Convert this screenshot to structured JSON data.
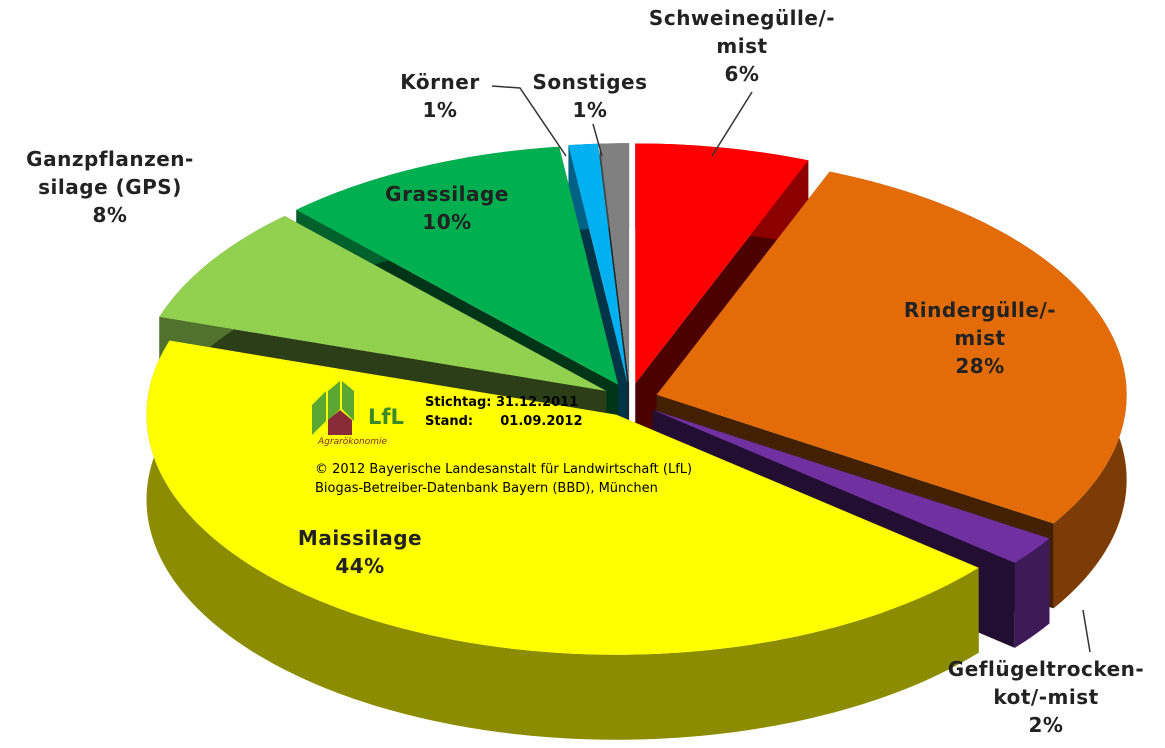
{
  "chart_data": {
    "type": "pie",
    "categories": [
      "Schweinegülle/-\nmist",
      "Rindergülle/-mist",
      "Geflügeltrocken-\nkot/-mist",
      "Maissilage",
      "Ganzpflanzen-\nsilage (GPS)",
      "Grassilage",
      "Körner",
      "Sonstiges"
    ],
    "values": [
      6,
      28,
      2,
      44,
      8,
      10,
      1,
      1
    ],
    "value_labels": [
      "6%",
      "28%",
      "2%",
      "44%",
      "8%",
      "10%",
      "1%",
      "1%"
    ],
    "colors": [
      "#ff0000",
      "#e36c09",
      "#7030a0",
      "#ffff00",
      "#92d050",
      "#00b050",
      "#00b0f0",
      "#808080"
    ],
    "logo": {
      "text": "LfL",
      "subtitle": "Agrarökonomie"
    },
    "annotations": [
      "Stichtag: 31.12.2011",
      "Stand:      01.09.2012",
      "© 2012 Bayerische Landesanstalt für Landwirtschaft (LfL)",
      "Biogas-Betreiber-Datenbank Bayern (BBD), München"
    ]
  }
}
